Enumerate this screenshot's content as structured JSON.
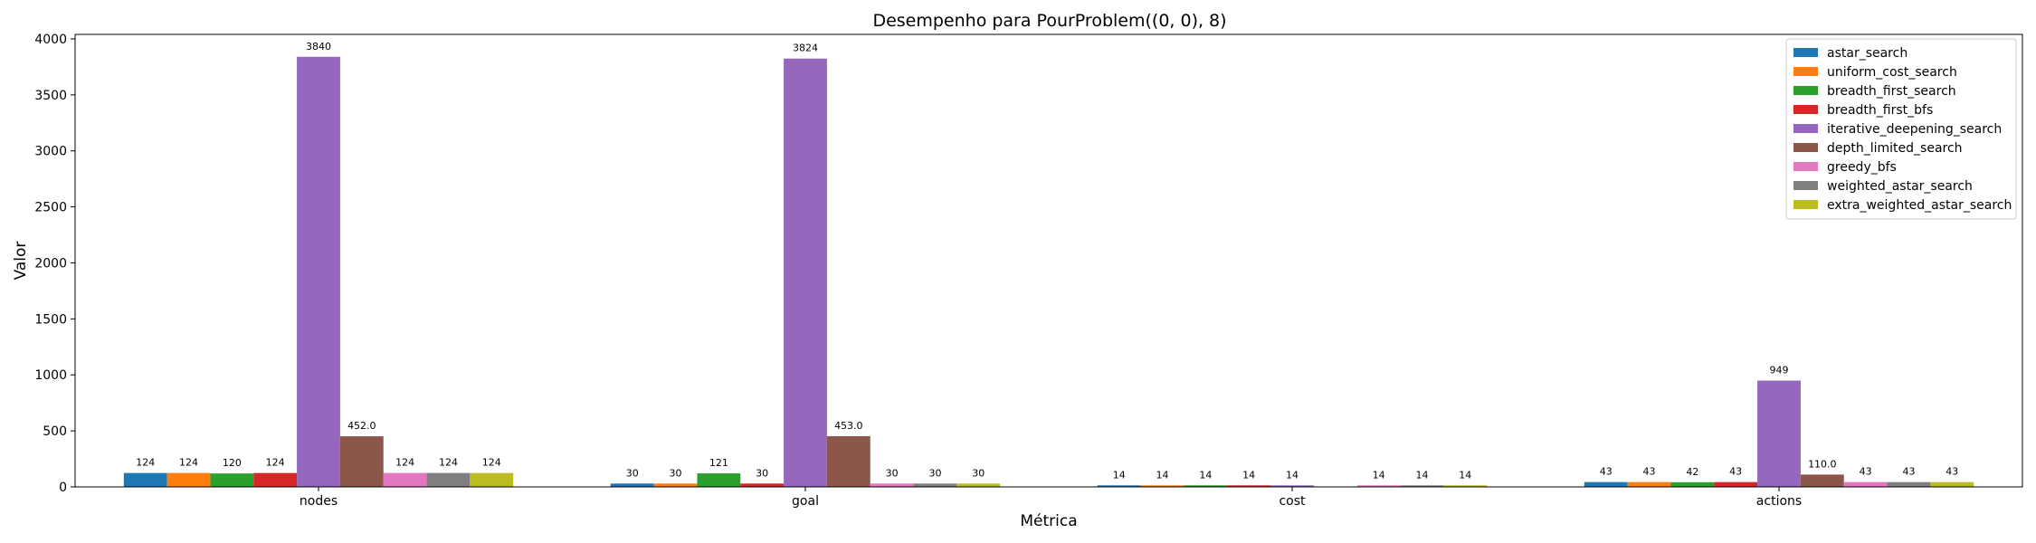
{
  "chart_data": {
    "type": "bar",
    "title": "Desempenho para PourProblem((0, 0), 8)",
    "xlabel": "Métrica",
    "ylabel": "Valor",
    "ylim": [
      0,
      4040
    ],
    "yticks": [
      0,
      500,
      1000,
      1500,
      2000,
      2500,
      3000,
      3500,
      4000
    ],
    "grid": false,
    "legend_position": "top-right",
    "categories": [
      "nodes",
      "goal",
      "cost",
      "actions"
    ],
    "series": [
      {
        "name": "astar_search",
        "color": "#1f77b4",
        "values": [
          124,
          30,
          14,
          43
        ],
        "labels": [
          "124",
          "30",
          "14",
          "43"
        ]
      },
      {
        "name": "uniform_cost_search",
        "color": "#ff7f0e",
        "values": [
          124,
          30,
          14,
          43
        ],
        "labels": [
          "124",
          "30",
          "14",
          "43"
        ]
      },
      {
        "name": "breadth_first_search",
        "color": "#2ca02c",
        "values": [
          120,
          121,
          14,
          42
        ],
        "labels": [
          "120",
          "121",
          "14",
          "42"
        ]
      },
      {
        "name": "breadth_first_bfs",
        "color": "#d62728",
        "values": [
          124,
          30,
          14,
          43
        ],
        "labels": [
          "124",
          "30",
          "14",
          "43"
        ]
      },
      {
        "name": "iterative_deepening_search",
        "color": "#9467bd",
        "values": [
          3840,
          3824,
          14,
          949
        ],
        "labels": [
          "3840",
          "3824",
          "14",
          "949"
        ]
      },
      {
        "name": "depth_limited_search",
        "color": "#8c564b",
        "values": [
          452.0,
          453.0,
          null,
          110.0
        ],
        "labels": [
          "452.0",
          "453.0",
          "",
          "110.0"
        ]
      },
      {
        "name": "greedy_bfs",
        "color": "#e377c2",
        "values": [
          124,
          30,
          14,
          43
        ],
        "labels": [
          "124",
          "30",
          "14",
          "43"
        ]
      },
      {
        "name": "weighted_astar_search",
        "color": "#7f7f7f",
        "values": [
          124,
          30,
          14,
          43
        ],
        "labels": [
          "124",
          "30",
          "14",
          "43"
        ]
      },
      {
        "name": "extra_weighted_astar_search",
        "color": "#bcbd22",
        "values": [
          124,
          30,
          14,
          43
        ],
        "labels": [
          "124",
          "30",
          "14",
          "43"
        ]
      }
    ]
  }
}
